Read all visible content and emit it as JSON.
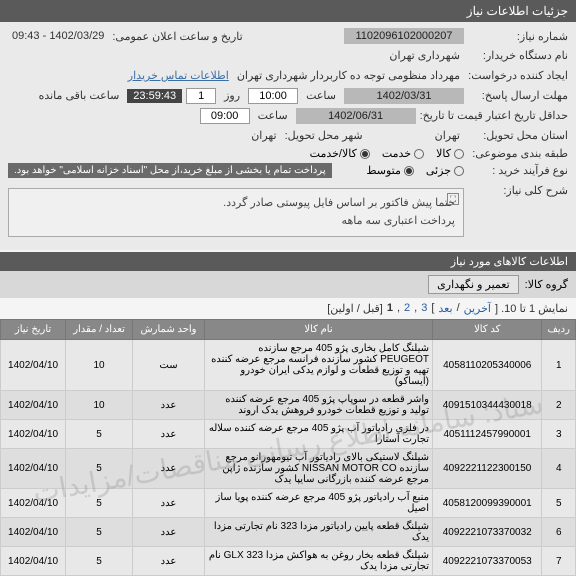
{
  "header": {
    "title": "جزئیات اطلاعات نیاز"
  },
  "form": {
    "need_no_label": "شماره نیاز:",
    "need_no": "1102096102000207",
    "announce_label": "تاریخ و ساعت اعلان عمومی:",
    "announce_val": "1402/03/29 - 09:43",
    "buyer_label": "نام دستگاه خریدار:",
    "buyer_val": "شهرداری تهران",
    "creator_label": "ایجاد کننده درخواست:",
    "creator_val": "مهرداد منظومی توجه ده کاربردار شهرداری تهران",
    "contact_link": "اطلاعات تماس خریدار",
    "deadline_label": "مهلت ارسال پاسخ:",
    "deadline_date": "1402/03/31",
    "time_lbl": "ساعت",
    "deadline_time": "10:00",
    "day_lbl": "روز",
    "day_val": "1",
    "countdown": "23:59:43",
    "remain_lbl": "ساعت باقی مانده",
    "valid_label": "حداقل تاریخ اعتبار قیمت تا تاریخ:",
    "valid_date": "1402/06/31",
    "valid_time": "09:00",
    "loc_label": "استان محل تحویل:",
    "loc_val": "تهران",
    "city_label": "شهر محل تحویل:",
    "city_val": "تهران",
    "class_label": "طبقه بندی موضوعی:",
    "opt_kala": "کالا",
    "opt_khadmat": "خدمت",
    "opt_both": "کالا/خدمت",
    "proc_label": "نوع فرآیند خرید :",
    "opt_small": "جزئی",
    "opt_med": "متوسط",
    "payment_note": "پرداخت تمام یا بخشی از مبلغ خرید،از محل \"اسناد خزانه اسلامی\" خواهد بود."
  },
  "desc": {
    "label": "شرح کلی نیاز:",
    "line1": "حتما پیش فاکتور بر اساس فایل پیوستی صادر گردد.",
    "line2": "پرداخت اعتباری سه ماهه"
  },
  "items_section": "اطلاعات کالاهای مورد نیاز",
  "category": {
    "label": "گروه کالا:",
    "value": "تعمیر و نگهداری"
  },
  "pager": {
    "text": "نمایش 1 تا 10. [ ",
    "last": "آخرین",
    "sep": " / ",
    "next": "بعد",
    "p3": "3",
    "p2": "2",
    "p1": "1",
    "tail": " [قبل / اولین]"
  },
  "table": {
    "headers": [
      "ردیف",
      "کد کالا",
      "نام کالا",
      "واحد شمارش",
      "تعداد / مقدار",
      "تاریخ نیاز"
    ],
    "rows": [
      [
        "1",
        "4058110205340006",
        "شیلنگ کامل بخاری پژو 405 مرجع سازنده PEUGEOT کشور سازنده فرانسه مرجع عرضه کننده تهیه و توزیع قطعات و لوازم یدکی ایران خودرو (ایساکو)",
        "ست",
        "10",
        "1402/04/10"
      ],
      [
        "2",
        "4091510344430018",
        "واشر قطعه در سوپاپ پژو 405 مرجع عرضه کننده تولید و توزیع قطعات خودرو فروهش یدک اروند",
        "عدد",
        "10",
        "1402/04/10"
      ],
      [
        "3",
        "4051112457990001",
        "در فلزی رادیاتور آب پژو 405 مرجع عرضه کننده سلاله تجارت آستارا",
        "عدد",
        "5",
        "1402/04/10"
      ],
      [
        "4",
        "4092221122300150",
        "شیلنگ لاستیکی بالای رادیاتور آب تیومهورانو مرجع سازنده NISSAN MOTOR CO کشور سازنده ژاپن مرجع عرضه کننده بازرگانی سایپا یدک",
        "عدد",
        "5",
        "1402/04/10"
      ],
      [
        "5",
        "4058120099390001",
        "منبع آب رادیاتور پژو 405 مرجع عرضه کننده پویا ساز اصیل",
        "عدد",
        "5",
        "1402/04/10"
      ],
      [
        "6",
        "4092221073370032",
        "شیلنگ قطعه پایین رادیاتور مزدا 323 نام تجارتی مزدا یدک",
        "عدد",
        "5",
        "1402/04/10"
      ],
      [
        "7",
        "4092221073370053",
        "شیلنگ قطعه بخار روغن به هواکش مزدا GLX 323 نام تجارتی مزدا یدک",
        "عدد",
        "5",
        "1402/04/10"
      ]
    ]
  },
  "watermark": "ستاد: سامانه اطلاع رسانی مناقصات/مزایدات"
}
